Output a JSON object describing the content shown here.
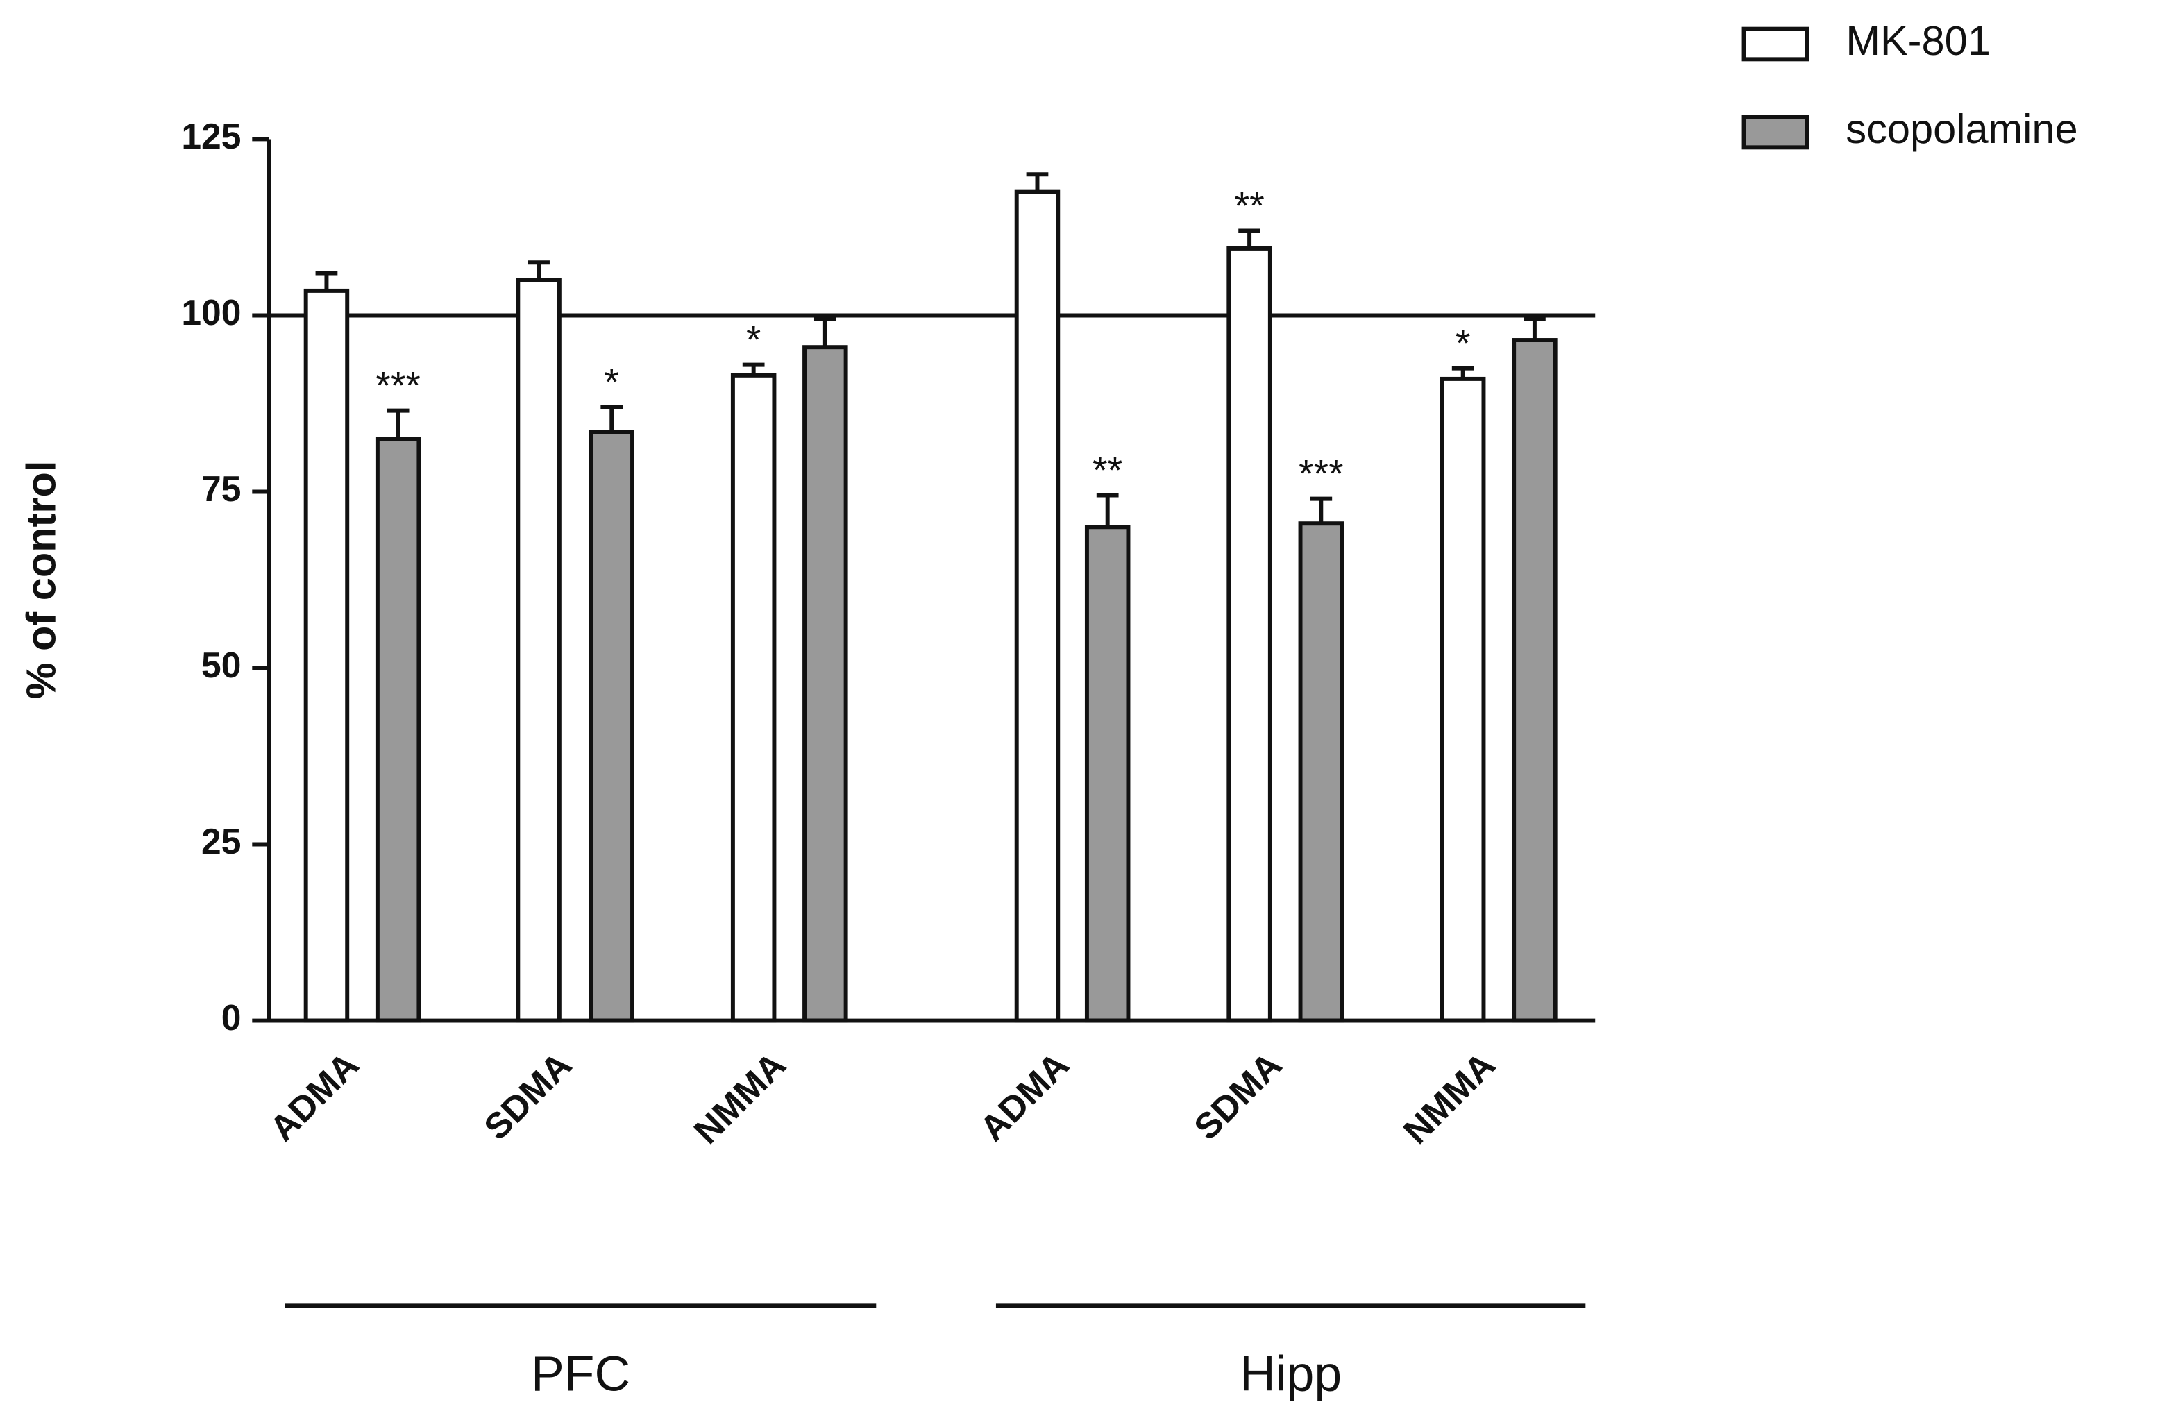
{
  "chart_data": {
    "type": "bar",
    "y_label": "% of control",
    "categories": [
      "ADMA",
      "SDMA",
      "NMMA",
      "ADMA",
      "SDMA",
      "NMMA"
    ],
    "groups": [
      "PFC",
      "Hipp"
    ],
    "series": [
      {
        "name": "MK-801",
        "color": "#ffffff",
        "values": [
          103.5,
          105,
          91.5,
          117.5,
          109.5,
          91
        ],
        "errors": [
          2.5,
          2.5,
          1.5,
          2.5,
          2.5,
          1.5
        ],
        "annotations": [
          null,
          null,
          "*",
          null,
          "**",
          "*"
        ]
      },
      {
        "name": "scopolamine",
        "color": "#999999",
        "values": [
          82.5,
          83.5,
          95.5,
          70,
          70.5,
          96.5
        ],
        "errors": [
          4,
          3.5,
          4,
          4.5,
          3.5,
          3
        ],
        "annotations": [
          "***",
          "*",
          null,
          "**",
          "***",
          null
        ]
      }
    ],
    "ylim": [
      0,
      125
    ],
    "yticks": [
      0,
      25,
      50,
      75,
      100,
      125
    ],
    "reference_line": 100
  }
}
